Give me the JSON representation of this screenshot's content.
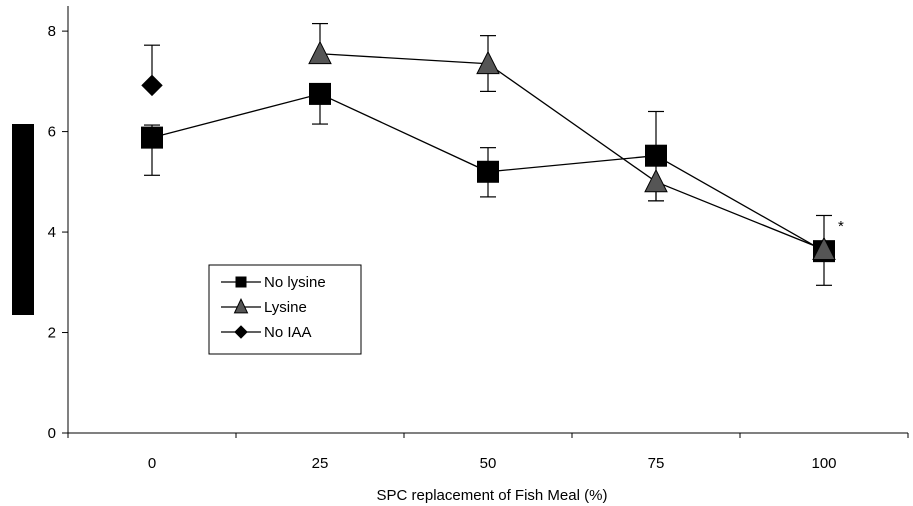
{
  "chart_data": {
    "type": "line",
    "title": "",
    "xlabel": "SPC replacement of Fish Meal (%)",
    "ylabel": "",
    "categories": [
      "0",
      "25",
      "50",
      "75",
      "100"
    ],
    "ylim": [
      0,
      8.5
    ],
    "yticks": [
      0,
      2,
      4,
      6,
      8
    ],
    "grid": false,
    "legend_position": "left-center",
    "series": [
      {
        "name": "No lysine",
        "marker": "square",
        "color": "#000000",
        "values": [
          5.88,
          6.75,
          5.2,
          5.52,
          3.62
        ],
        "err_low": [
          0.75,
          0.6,
          0.5,
          0.9,
          0.68
        ],
        "err_high": [
          0.25,
          0.0,
          0.48,
          0.88,
          0.0
        ]
      },
      {
        "name": "Lysine",
        "marker": "triangle",
        "color": "#555555",
        "values": [
          null,
          7.55,
          7.35,
          5.0,
          3.65
        ],
        "err_low": [
          null,
          0.0,
          0.55,
          0.38,
          0.0
        ],
        "err_high": [
          null,
          0.6,
          0.56,
          0.0,
          0.68
        ]
      },
      {
        "name": "No IAA",
        "marker": "diamond",
        "color": "#000000",
        "values": [
          6.92,
          null,
          null,
          null,
          null
        ],
        "err_low": [
          0.0,
          null,
          null,
          null,
          null
        ],
        "err_high": [
          0.8,
          null,
          null,
          null,
          null
        ]
      }
    ],
    "annotations": [
      {
        "text": "*",
        "x": "100",
        "y": 4.1
      }
    ]
  }
}
